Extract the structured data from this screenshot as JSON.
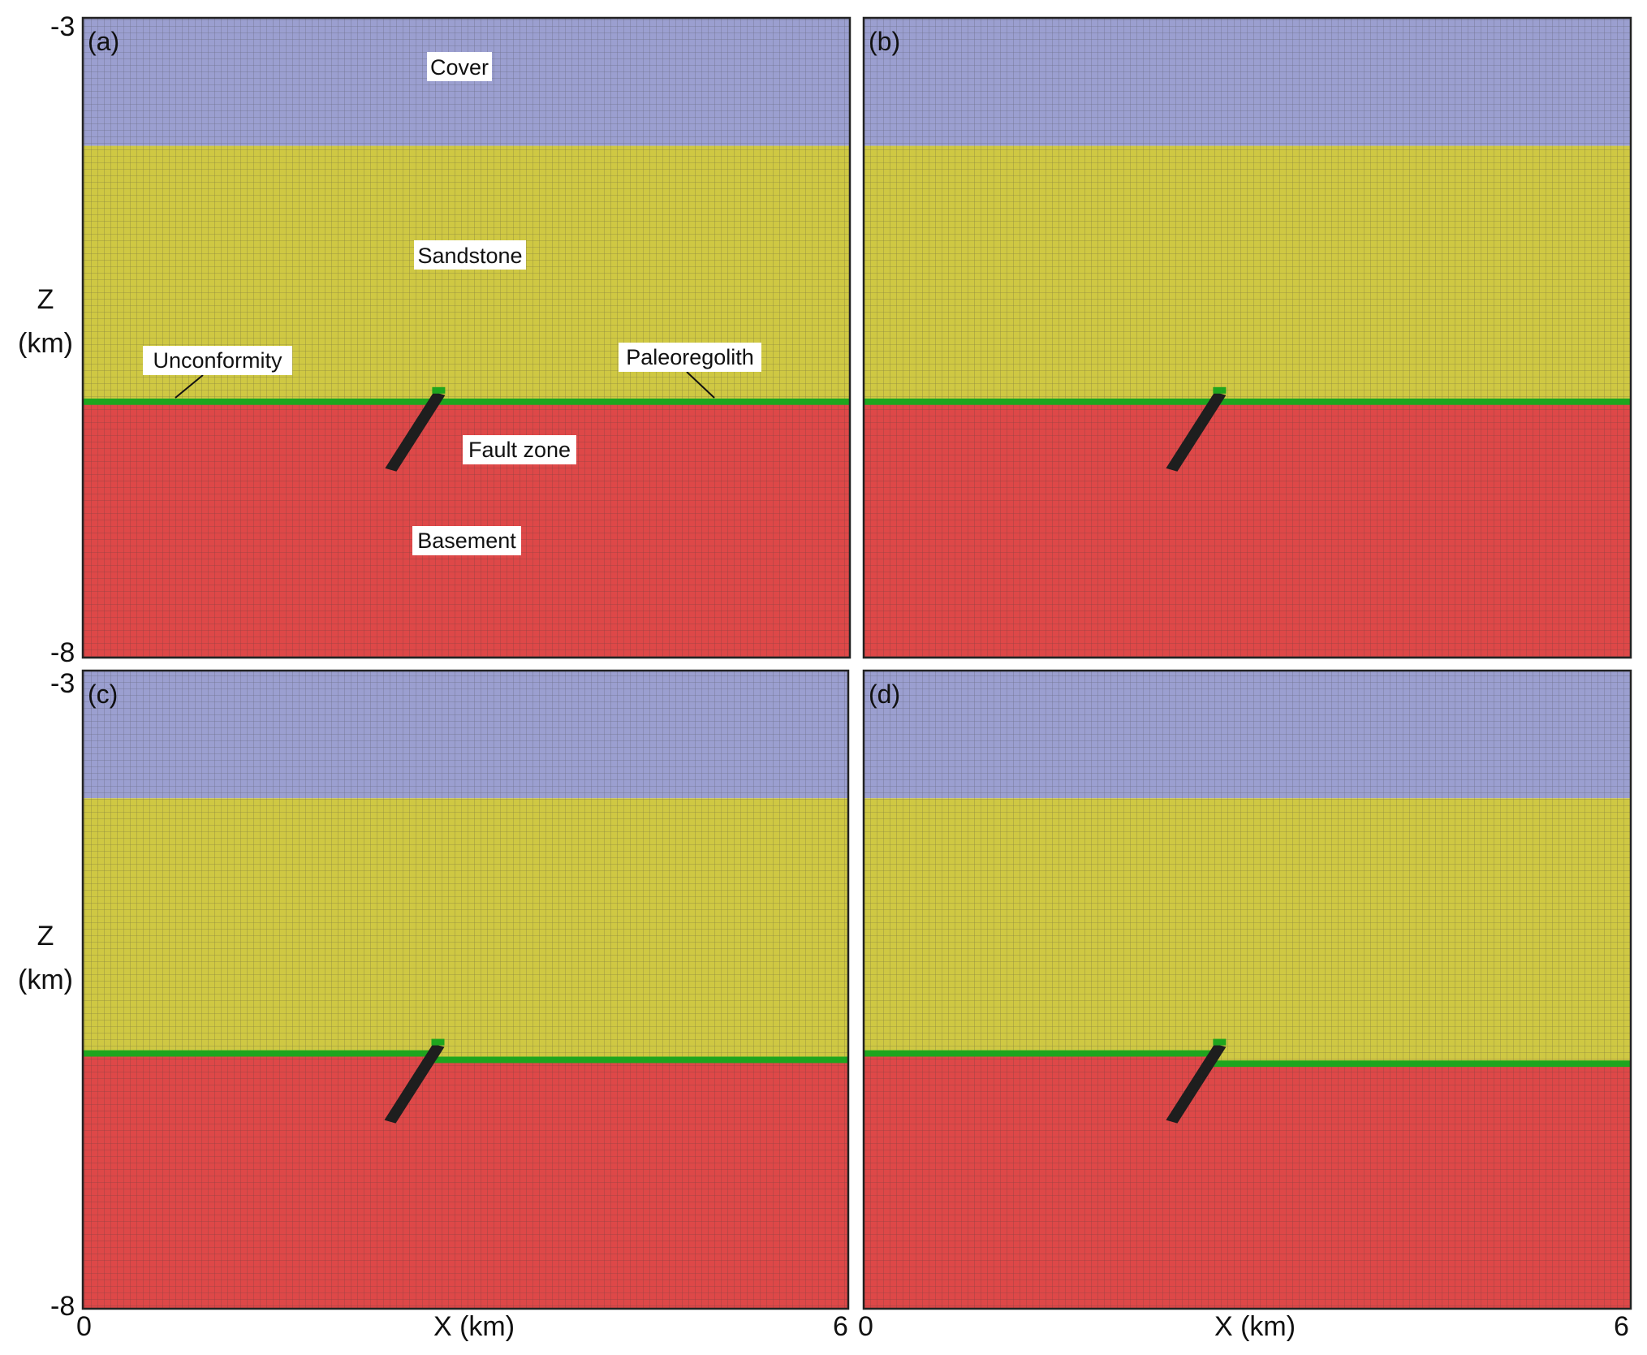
{
  "figure": {
    "colors": {
      "cover": "#9b9fd0",
      "sandstone": "#cfc843",
      "basement": "#de4848",
      "paleoregolith": "#1ea51e",
      "fault_zone": "#1e1e1e",
      "grid_line": "#4a4a4a"
    },
    "axes": {
      "z_title_line1": "Z",
      "z_title_line2": "(km)",
      "x_title": "X (km)",
      "z_top_tick": "-3",
      "z_bottom_tick": "-8",
      "x_left_tick": "0",
      "x_right_tick": "6",
      "x_range": [
        0,
        6
      ],
      "z_range": [
        -8,
        -3
      ]
    },
    "panels": [
      {
        "label": "(a)",
        "unconformity_depth_left": -6.0,
        "unconformity_depth_right": -6.0,
        "fault_x": 2.72,
        "offset_at_fault": false
      },
      {
        "label": "(b)",
        "unconformity_depth_left": -6.0,
        "unconformity_depth_right": -6.0,
        "fault_x": 2.72,
        "offset_at_fault": false
      },
      {
        "label": "(c)",
        "unconformity_depth_left": -6.0,
        "unconformity_depth_right": -6.05,
        "fault_x": 2.72,
        "offset_at_fault": true
      },
      {
        "label": "(d)",
        "unconformity_depth_left": -6.0,
        "unconformity_depth_right": -6.08,
        "fault_x": 2.72,
        "offset_at_fault": true
      }
    ],
    "layers": {
      "cover_base_depth": -4.0,
      "regolith_thickness_km": 0.05
    },
    "annotations": {
      "cover": "Cover",
      "sandstone": "Sandstone",
      "unconformity": "Unconformity",
      "paleoregolith": "Paleoregolith",
      "fault_zone": "Fault zone",
      "basement": "Basement"
    }
  }
}
